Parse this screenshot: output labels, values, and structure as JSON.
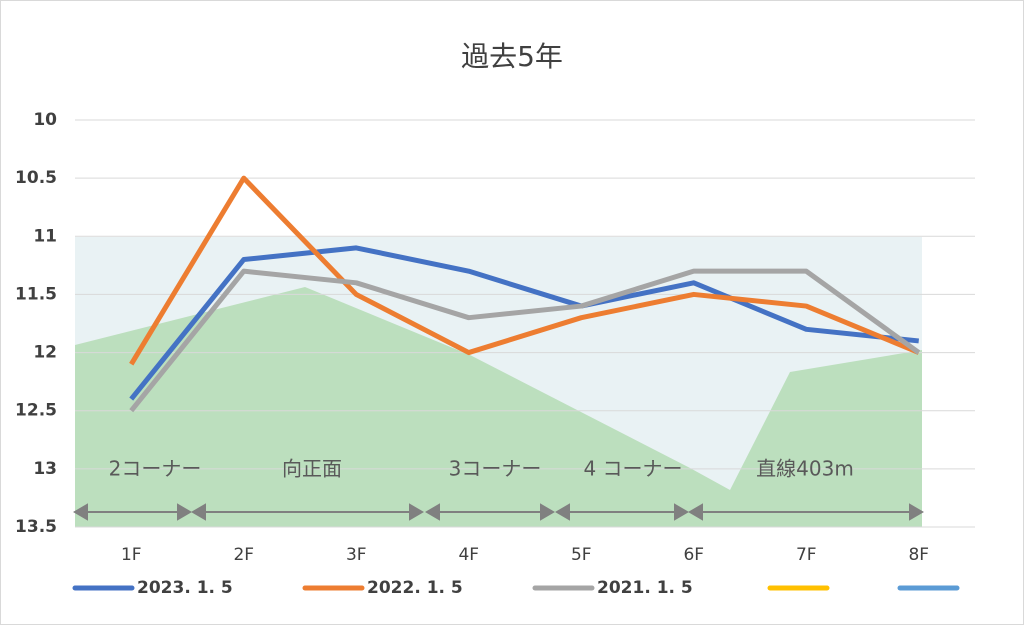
{
  "chart_data": {
    "type": "line",
    "title": "過去5年",
    "categories": [
      "1F",
      "2F",
      "3F",
      "4F",
      "5F",
      "6F",
      "7F",
      "8F"
    ],
    "series": [
      {
        "name": "2023. 1. 5",
        "color": "#4472c4",
        "values": [
          12.4,
          11.2,
          11.1,
          11.3,
          11.6,
          11.4,
          11.8,
          11.9
        ]
      },
      {
        "name": "2022. 1. 5",
        "color": "#ed7d31",
        "values": [
          12.1,
          10.5,
          11.5,
          12.0,
          11.7,
          11.5,
          11.6,
          12.0
        ]
      },
      {
        "name": "2021. 1. 5",
        "color": "#a5a5a5",
        "values": [
          12.5,
          11.3,
          11.4,
          11.7,
          11.6,
          11.3,
          11.3,
          12.0
        ]
      },
      {
        "name": null,
        "color": "#ffc000",
        "values": [
          null,
          null,
          null,
          null,
          null,
          null,
          null,
          null
        ]
      },
      {
        "name": null,
        "color": "#5b9bd5",
        "values": [
          null,
          null,
          null,
          null,
          null,
          null,
          null,
          null
        ]
      }
    ],
    "ylim": [
      10,
      13.5
    ],
    "yreverse": true,
    "yticks": [
      10,
      10.5,
      11,
      11.5,
      12,
      12.5,
      13,
      13.5
    ],
    "grid": true,
    "legend": "bottom",
    "annotations": [
      "2コーナー",
      "向正面",
      "3コーナー",
      "4 コーナー",
      "直線403m"
    ]
  }
}
